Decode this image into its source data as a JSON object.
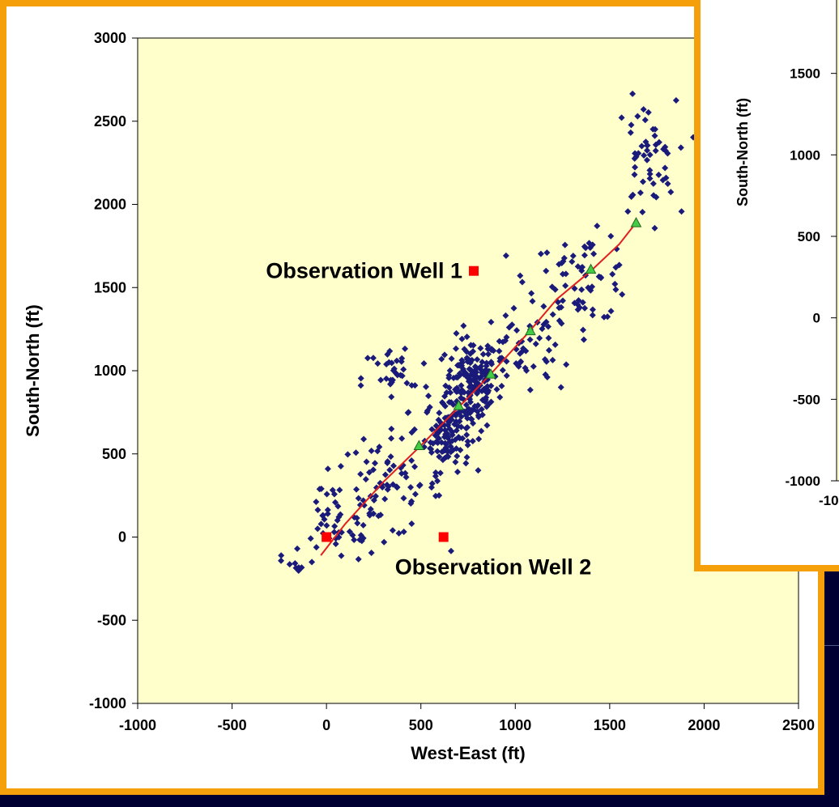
{
  "colors": {
    "frame": "#f5a00a",
    "plot_bg": "#ffffcc",
    "points": "#1a1a7a",
    "wells": "#ff0000",
    "trajectory": "#e02020",
    "stages": "#44cc44",
    "background": "#000033"
  },
  "chart_data": [
    {
      "type": "scatter",
      "xlabel": "West-East (ft)",
      "ylabel": "South-North (ft)",
      "xlim": [
        -1000,
        2500
      ],
      "ylim": [
        -1000,
        3000
      ],
      "xticks": [
        "-1000",
        "-500",
        "0",
        "500",
        "1000",
        "1500",
        "2000",
        "2500"
      ],
      "yticks": [
        "-1000",
        "-500",
        "0",
        "500",
        "1000",
        "1500",
        "2000",
        "2500",
        "3000"
      ],
      "grid": false,
      "annotations": [
        {
          "text": "Observation Well 1",
          "x": 780,
          "y": 1600
        },
        {
          "text": "Observation Well 2",
          "x": 620,
          "y": 0
        }
      ],
      "series": [
        {
          "kind": "wells",
          "points": [
            [
              0,
              0
            ],
            [
              620,
              0
            ],
            [
              780,
              1600
            ]
          ]
        },
        {
          "kind": "trajectory",
          "points": [
            [
              -30,
              -110
            ],
            [
              100,
              80
            ],
            [
              300,
              330
            ],
            [
              500,
              550
            ],
            [
              700,
              780
            ],
            [
              870,
              980
            ],
            [
              1070,
              1230
            ],
            [
              1220,
              1430
            ],
            [
              1400,
              1600
            ],
            [
              1550,
              1760
            ],
            [
              1640,
              1890
            ]
          ]
        },
        {
          "kind": "stages",
          "points": [
            [
              490,
              550
            ],
            [
              700,
              790
            ],
            [
              870,
              980
            ],
            [
              1080,
              1240
            ],
            [
              1400,
              1610
            ],
            [
              1640,
              1890
            ]
          ]
        },
        {
          "kind": "microseismic",
          "clusters": [
            {
              "cx": 770,
              "cy": 920,
              "sx": 70,
              "sy": 140,
              "n": 170
            },
            {
              "cx": 640,
              "cy": 620,
              "sx": 60,
              "sy": 110,
              "n": 110
            },
            {
              "cx": 300,
              "cy": 300,
              "sx": 160,
              "sy": 150,
              "n": 80
            },
            {
              "cx": 60,
              "cy": 50,
              "sx": 120,
              "sy": 110,
              "n": 40
            },
            {
              "cx": 1050,
              "cy": 1100,
              "sx": 130,
              "sy": 130,
              "n": 60
            },
            {
              "cx": 1350,
              "cy": 1560,
              "sx": 140,
              "sy": 130,
              "n": 70
            },
            {
              "cx": 1690,
              "cy": 2260,
              "sx": 80,
              "sy": 180,
              "n": 55
            },
            {
              "cx": 370,
              "cy": 950,
              "sx": 90,
              "sy": 110,
              "n": 35
            },
            {
              "cx": -180,
              "cy": -150,
              "sx": 60,
              "sy": 60,
              "n": 10
            }
          ]
        }
      ]
    },
    {
      "type": "scatter",
      "ylabel": "South-North (ft)",
      "xlim": [
        -1000,
        2500
      ],
      "ylim": [
        -1000,
        2000
      ],
      "xticks": [
        "-10"
      ],
      "yticks": [
        "-1000",
        "-500",
        "0",
        "500",
        "1000",
        "1500"
      ],
      "grid": false
    }
  ]
}
